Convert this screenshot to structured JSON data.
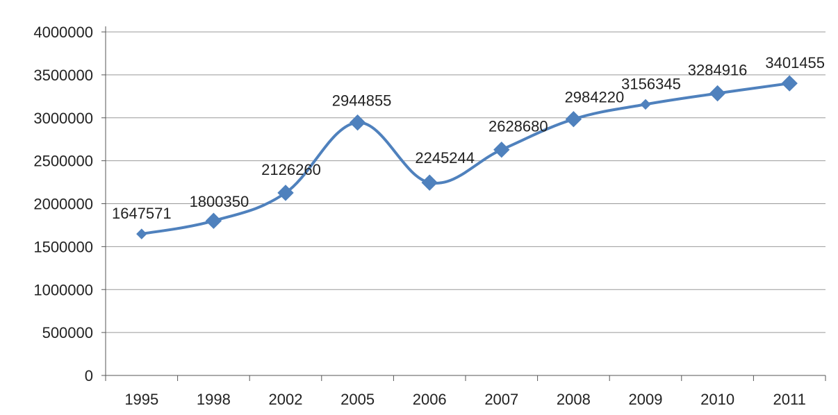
{
  "chart_data": {
    "type": "line",
    "title": "",
    "xlabel": "",
    "ylabel": "",
    "categories": [
      "1995",
      "1998",
      "2002",
      "2005",
      "2006",
      "2007",
      "2008",
      "2009",
      "2010",
      "2011"
    ],
    "series": [
      {
        "values": [
          1647571,
          1800350,
          2126260,
          2944855,
          2245244,
          2628680,
          2984220,
          3156345,
          3284916,
          3401455
        ],
        "color": "#4F81BD",
        "marker": "diamond"
      }
    ],
    "data_labels": [
      "1647571",
      "1800350",
      "2126260",
      "2944855",
      "2245244",
      "2628680",
      "2984220",
      "3156345",
      "3284916",
      "3401455"
    ],
    "ylim": [
      0,
      4000000
    ],
    "yticks": [
      0,
      500000,
      1000000,
      1500000,
      2000000,
      2500000,
      3000000,
      3500000,
      4000000
    ],
    "ytick_labels": [
      "0",
      "500000",
      "1000000",
      "1500000",
      "2000000",
      "2500000",
      "3000000",
      "3500000",
      "4000000"
    ],
    "grid": true,
    "legend": "none",
    "colors": {
      "line": "#4F81BD",
      "grid": "#999999",
      "axis": "#555555"
    }
  }
}
